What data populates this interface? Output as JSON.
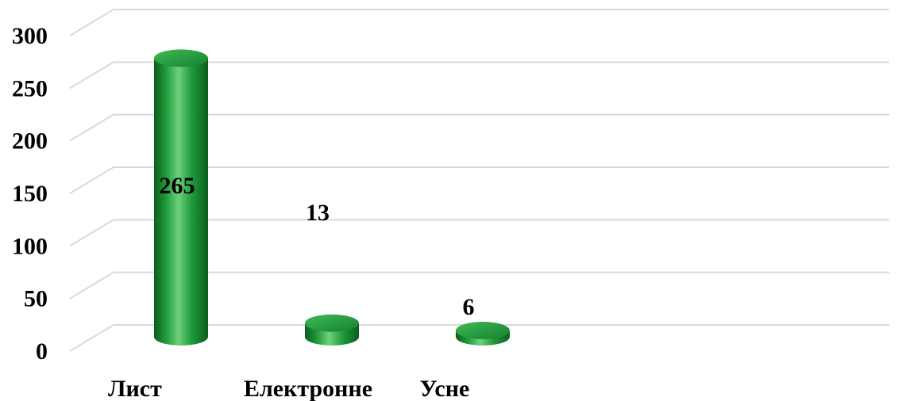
{
  "chart_data": {
    "type": "bar",
    "style": "3d-cylinder",
    "categories": [
      "Лист",
      "Електронне",
      "Усне"
    ],
    "values": [
      265,
      13,
      6
    ],
    "data_labels": [
      "265",
      "13",
      "6"
    ],
    "title": "",
    "xlabel": "",
    "ylabel": "",
    "ylim": [
      0,
      300
    ],
    "yticks": [
      "0",
      "50",
      "100",
      "150",
      "200",
      "250",
      "300"
    ],
    "grid": true,
    "legend": "none",
    "colors": {
      "bar": "#1f9a3a",
      "bar_dark": "#0b5e1f",
      "bar_light": "#6fd07e",
      "grid": "#d9d9d9",
      "text": "#000000"
    }
  }
}
